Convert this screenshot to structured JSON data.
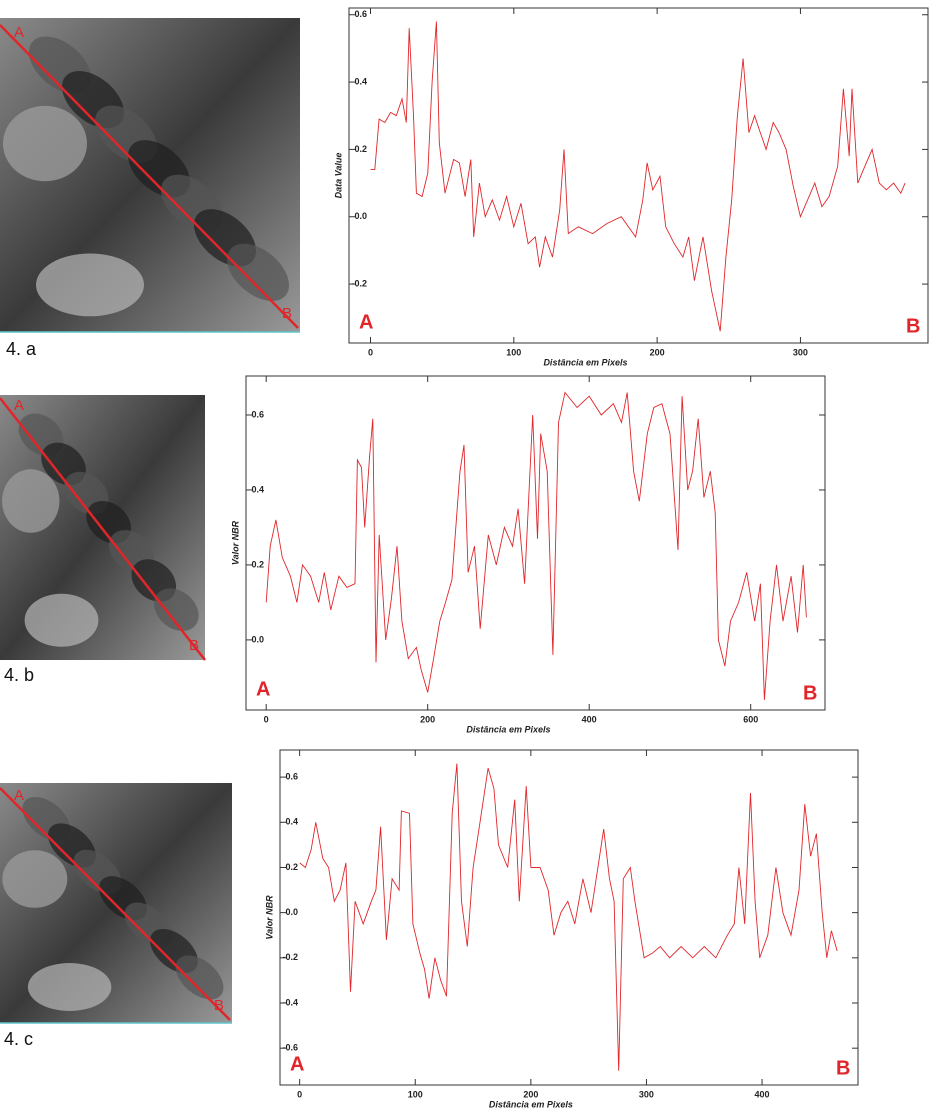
{
  "chart_data": [
    {
      "type": "line",
      "panel_label": "4. a",
      "image_labels": [
        "A",
        "B"
      ],
      "end_labels": [
        "A",
        "B"
      ],
      "y_label": "Data Value",
      "x_label": "Distância em Pixels",
      "color": "#e0262a",
      "xlim": [
        -15,
        389
      ],
      "ylim": [
        -0.375,
        0.62
      ],
      "xticks": [
        0,
        100,
        200,
        300
      ],
      "yticks": [
        {
          "value": -0.2,
          "label": "-0.2"
        },
        {
          "value": 0,
          "label": "0.0"
        },
        0.2,
        0.4,
        0.6
      ],
      "x": [
        0,
        3,
        6,
        10,
        14,
        18,
        22,
        25,
        27,
        30,
        32,
        36,
        40,
        43,
        46,
        48,
        52,
        58,
        62,
        66,
        70,
        72,
        76,
        80,
        85,
        90,
        95,
        100,
        105,
        110,
        115,
        118,
        122,
        127,
        132,
        135,
        138,
        145,
        155,
        165,
        175,
        185,
        190,
        193,
        197,
        202,
        206,
        212,
        218,
        222,
        226,
        232,
        238,
        244,
        248,
        252,
        256,
        260,
        264,
        268,
        272,
        276,
        281,
        285,
        290,
        295,
        300,
        305,
        310,
        315,
        320,
        326,
        330,
        334,
        336,
        340,
        345,
        350,
        355,
        360,
        365,
        370,
        373
      ],
      "values": [
        0.14,
        0.14,
        0.29,
        0.28,
        0.31,
        0.3,
        0.35,
        0.28,
        0.56,
        0.3,
        0.07,
        0.06,
        0.13,
        0.4,
        0.58,
        0.22,
        0.07,
        0.17,
        0.16,
        0.06,
        0.17,
        -0.06,
        0.1,
        0.0,
        0.05,
        -0.01,
        0.06,
        -0.03,
        0.04,
        -0.08,
        -0.06,
        -0.15,
        -0.06,
        -0.12,
        0.02,
        0.2,
        -0.05,
        -0.03,
        -0.05,
        -0.02,
        0.0,
        -0.06,
        0.05,
        0.16,
        0.08,
        0.12,
        -0.03,
        -0.08,
        -0.12,
        -0.06,
        -0.19,
        -0.06,
        -0.22,
        -0.34,
        -0.12,
        0.05,
        0.3,
        0.47,
        0.25,
        0.3,
        0.25,
        0.2,
        0.28,
        0.25,
        0.2,
        0.09,
        0.0,
        0.05,
        0.1,
        0.03,
        0.06,
        0.15,
        0.38,
        0.18,
        0.38,
        0.1,
        0.15,
        0.2,
        0.1,
        0.08,
        0.1,
        0.07,
        0.1
      ]
    },
    {
      "type": "line",
      "panel_label": "4. b",
      "image_labels": [
        "A",
        "B"
      ],
      "end_labels": [
        "A",
        "B"
      ],
      "y_label": "Valor NBR",
      "x_label": "Distância em Pixels",
      "color": "#e0262a",
      "xlim": [
        -25,
        692
      ],
      "ylim": [
        -0.187,
        0.704
      ],
      "xticks": [
        0,
        200,
        400,
        600
      ],
      "yticks": [
        {
          "value": 0,
          "label": "0.0"
        },
        0.2,
        0.4,
        0.6
      ],
      "x": [
        0,
        5,
        12,
        20,
        30,
        38,
        45,
        55,
        65,
        72,
        80,
        90,
        100,
        110,
        113,
        118,
        122,
        128,
        132,
        136,
        140,
        148,
        155,
        162,
        168,
        176,
        186,
        192,
        200,
        208,
        215,
        222,
        230,
        240,
        245,
        250,
        258,
        265,
        275,
        285,
        295,
        305,
        312,
        320,
        330,
        336,
        340,
        348,
        355,
        362,
        370,
        385,
        400,
        415,
        430,
        440,
        447,
        455,
        462,
        472,
        480,
        490,
        500,
        510,
        515,
        522,
        528,
        535,
        542,
        550,
        556,
        560,
        568,
        575,
        585,
        595,
        605,
        612,
        617,
        624,
        632,
        640,
        650,
        658,
        665,
        669
      ],
      "values": [
        0.1,
        0.25,
        0.32,
        0.22,
        0.17,
        0.1,
        0.2,
        0.17,
        0.1,
        0.18,
        0.08,
        0.17,
        0.14,
        0.15,
        0.48,
        0.46,
        0.3,
        0.49,
        0.59,
        -0.06,
        0.28,
        0.0,
        0.11,
        0.25,
        0.05,
        -0.05,
        -0.02,
        -0.08,
        -0.14,
        -0.04,
        0.05,
        0.1,
        0.16,
        0.45,
        0.52,
        0.18,
        0.25,
        0.03,
        0.28,
        0.2,
        0.3,
        0.25,
        0.35,
        0.15,
        0.6,
        0.27,
        0.55,
        0.45,
        -0.04,
        0.58,
        0.66,
        0.62,
        0.65,
        0.6,
        0.63,
        0.58,
        0.66,
        0.45,
        0.37,
        0.55,
        0.62,
        0.63,
        0.55,
        0.24,
        0.65,
        0.4,
        0.45,
        0.59,
        0.38,
        0.45,
        0.34,
        0.0,
        -0.07,
        0.05,
        0.1,
        0.18,
        0.05,
        0.15,
        -0.16,
        0.05,
        0.2,
        0.05,
        0.17,
        0.02,
        0.2,
        0.06
      ]
    },
    {
      "type": "line",
      "panel_label": "4. c",
      "image_labels": [
        "A",
        "B"
      ],
      "end_labels": [
        "A",
        "B"
      ],
      "y_label": "Valor NBR",
      "x_label": "Distância em Pixels",
      "color": "#e0262a",
      "xlim": [
        -17,
        483
      ],
      "ylim": [
        -0.763,
        0.72
      ],
      "xticks": [
        0,
        100,
        200,
        300,
        400
      ],
      "yticks": [
        {
          "value": -0.6,
          "label": "-0.6"
        },
        {
          "value": -0.4,
          "label": "-0.4"
        },
        {
          "value": -0.2,
          "label": "-0.2"
        },
        {
          "value": 0,
          "label": "0.0"
        },
        0.2,
        0.4,
        0.6
      ],
      "x": [
        0,
        5,
        10,
        14,
        20,
        25,
        30,
        35,
        40,
        44,
        48,
        55,
        62,
        66,
        70,
        75,
        80,
        86,
        88,
        95,
        98,
        104,
        108,
        112,
        117,
        122,
        127,
        132,
        136,
        140,
        145,
        150,
        156,
        163,
        168,
        172,
        180,
        186,
        190,
        196,
        200,
        208,
        215,
        220,
        226,
        232,
        238,
        245,
        252,
        258,
        263,
        268,
        272,
        276,
        280,
        286,
        290,
        298,
        305,
        312,
        320,
        330,
        340,
        350,
        360,
        370,
        376,
        380,
        385,
        390,
        394,
        398,
        405,
        412,
        418,
        425,
        432,
        437,
        442,
        447,
        452,
        456,
        460,
        465
      ],
      "values": [
        0.22,
        0.2,
        0.28,
        0.4,
        0.24,
        0.2,
        0.05,
        0.1,
        0.22,
        -0.35,
        0.05,
        -0.05,
        0.05,
        0.1,
        0.38,
        -0.12,
        0.15,
        0.1,
        0.45,
        0.44,
        -0.05,
        -0.18,
        -0.25,
        -0.38,
        -0.2,
        -0.3,
        -0.37,
        0.44,
        0.66,
        0.05,
        -0.15,
        0.2,
        0.4,
        0.64,
        0.55,
        0.3,
        0.2,
        0.5,
        0.05,
        0.56,
        0.2,
        0.2,
        0.1,
        -0.1,
        0.0,
        0.05,
        -0.05,
        0.15,
        0.0,
        0.2,
        0.37,
        0.15,
        0.05,
        -0.7,
        0.15,
        0.2,
        0.05,
        -0.2,
        -0.18,
        -0.15,
        -0.2,
        -0.15,
        -0.2,
        -0.15,
        -0.2,
        -0.1,
        -0.05,
        0.2,
        -0.05,
        0.53,
        0.05,
        -0.2,
        -0.1,
        0.2,
        0.0,
        -0.1,
        0.1,
        0.48,
        0.25,
        0.35,
        0.0,
        -0.2,
        -0.08,
        -0.17
      ]
    }
  ]
}
